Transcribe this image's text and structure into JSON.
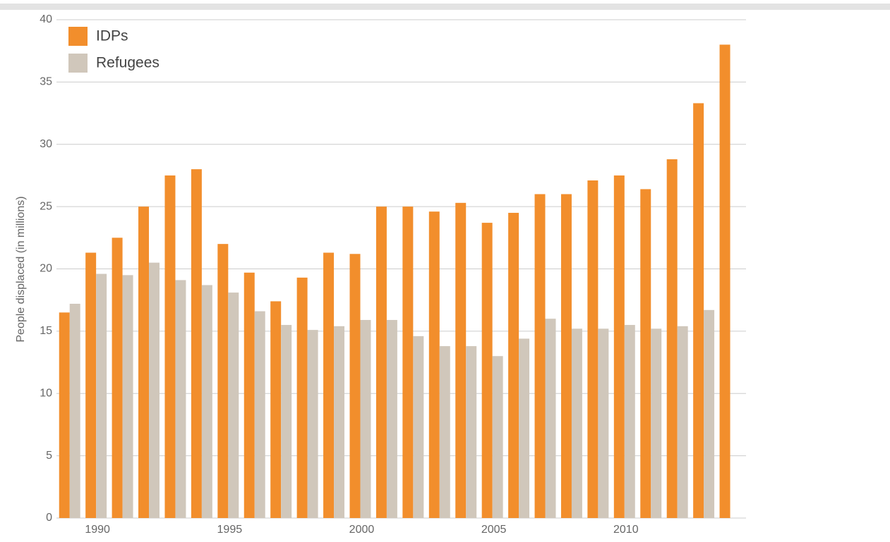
{
  "chart_data": {
    "type": "bar",
    "y_label": "People displaced (in millions)",
    "x": [
      1989,
      1990,
      1991,
      1992,
      1993,
      1994,
      1995,
      1996,
      1997,
      1998,
      1999,
      2000,
      2001,
      2002,
      2003,
      2004,
      2005,
      2006,
      2007,
      2008,
      2009,
      2010,
      2011,
      2012,
      2013,
      2014
    ],
    "series": [
      {
        "name": "IDPs",
        "color": "#f28e2c",
        "values": [
          16.5,
          21.3,
          22.5,
          25,
          27.5,
          28,
          22,
          19.7,
          17.4,
          19.3,
          21.3,
          21.2,
          25,
          25,
          24.6,
          25.3,
          23.7,
          24.5,
          26,
          26,
          27.1,
          27.5,
          26.4,
          28.8,
          33.3,
          38
        ]
      },
      {
        "name": "Refugees",
        "color": "#d0c7bb",
        "values": [
          17.2,
          19.6,
          19.5,
          20.5,
          19.1,
          18.7,
          18.1,
          16.6,
          15.5,
          15.1,
          15.4,
          15.9,
          15.9,
          14.6,
          13.8,
          13.8,
          13.0,
          14.4,
          16.0,
          15.2,
          15.2,
          15.5,
          15.2,
          15.4,
          16.7,
          null
        ]
      }
    ],
    "xlim": [
      1988.5,
      2014.6
    ],
    "xticks": [
      1990,
      1995,
      2000,
      2005,
      2010
    ],
    "ylim": [
      0,
      40
    ],
    "yticks": [
      0,
      5,
      10,
      15,
      20,
      25,
      30,
      35,
      40
    ],
    "grid": true,
    "legend": "top-left"
  }
}
